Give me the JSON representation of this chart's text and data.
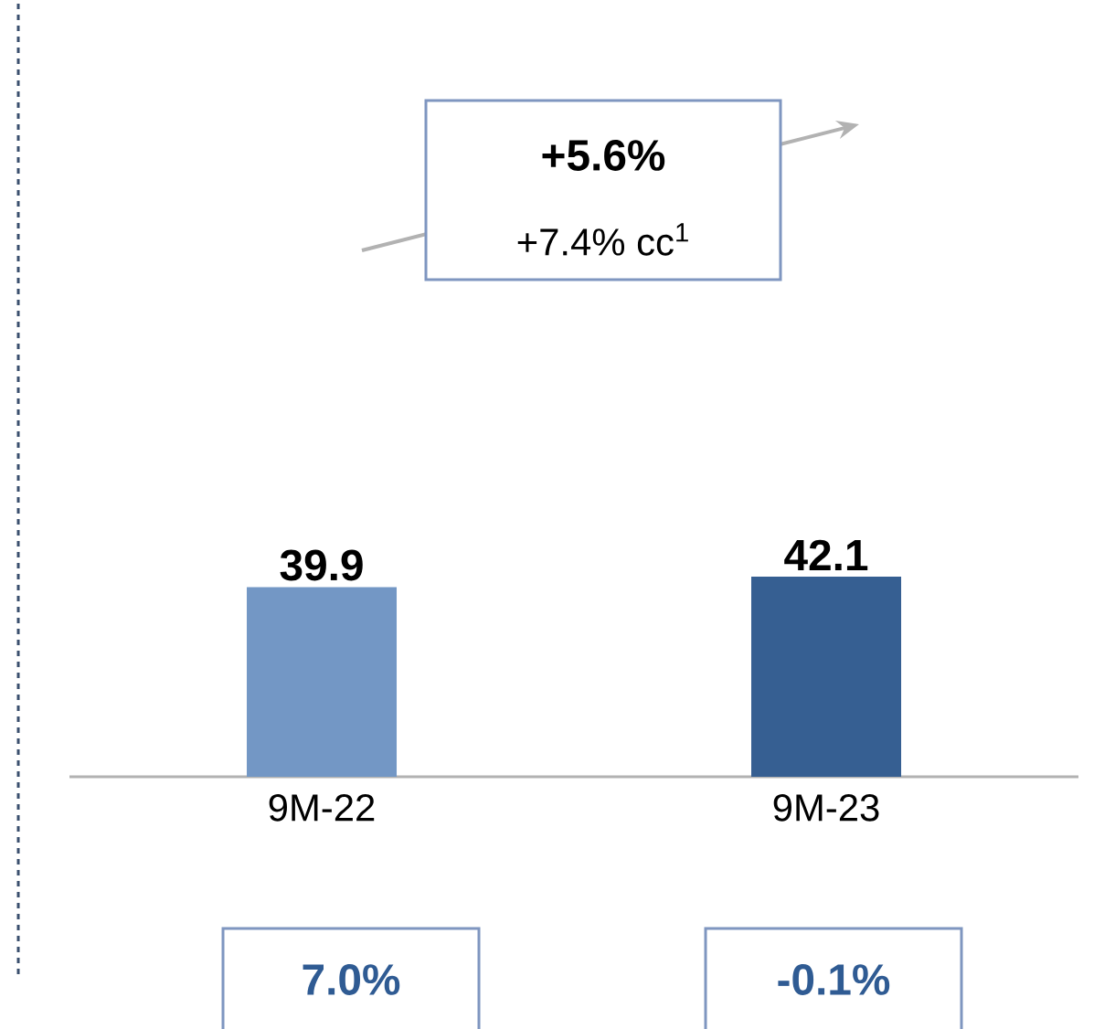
{
  "chart_data": {
    "type": "bar",
    "categories": [
      "9M-22",
      "9M-23"
    ],
    "values": [
      39.9,
      42.1
    ],
    "colors": [
      "#7397c5",
      "#365f92"
    ],
    "tick_labels": "x",
    "data_labels": true,
    "annotations": [
      "+5.6%",
      "+7.4% cc$^{1}$",
      "7.0%",
      "-0.1%"
    ]
  }
}
